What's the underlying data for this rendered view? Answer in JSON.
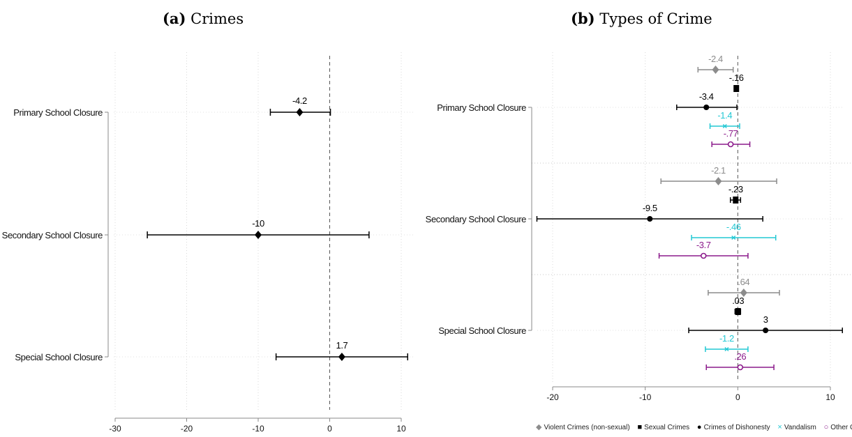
{
  "chart_data": [
    {
      "type": "coefficient-plot",
      "panel_label": "(a)",
      "title": "Crimes",
      "categories": [
        "Primary School Closure",
        "Secondary School Closure",
        "Special School Closure"
      ],
      "series": [
        {
          "marker": "diamond",
          "color": "#000000",
          "estimates": [
            -4.2,
            -10,
            1.7
          ],
          "ci_low": [
            -8.3,
            -25.5,
            -7.5
          ],
          "ci_high": [
            0.1,
            5.5,
            10.9
          ],
          "labels": [
            "-4.2",
            "-10",
            "1.7"
          ]
        }
      ],
      "x_ticks": [
        "-30",
        "-20",
        "-10",
        "0",
        "10"
      ],
      "xlim": [
        -31,
        12
      ],
      "reference_line": 0,
      "grid": true
    },
    {
      "type": "coefficient-plot",
      "panel_label": "(b)",
      "title": "Types of Crime",
      "categories": [
        "Primary School Closure",
        "Secondary School Closure",
        "Special School Closure"
      ],
      "series": [
        {
          "name": "Violent Crimes (non-sexual)",
          "marker": "diamond",
          "color": "#8c8c8c",
          "estimates": [
            -2.4,
            -2.1,
            0.64
          ],
          "ci_low": [
            -4.3,
            -8.3,
            -3.2
          ],
          "ci_high": [
            -0.5,
            4.2,
            4.5
          ],
          "labels": [
            "-2.4",
            "-2.1",
            ".64"
          ]
        },
        {
          "name": "Sexual Crimes",
          "marker": "square",
          "color": "#000000",
          "estimates": [
            -0.16,
            -0.23,
            0.03
          ],
          "ci_low": [
            -0.3,
            -0.8,
            -0.3
          ],
          "ci_high": [
            0.0,
            0.3,
            0.3
          ],
          "labels": [
            "-.16",
            "-.23",
            ".03"
          ]
        },
        {
          "name": "Crimes of Dishonesty",
          "marker": "circle",
          "color": "#000000",
          "estimates": [
            -3.4,
            -9.5,
            3
          ],
          "ci_low": [
            -6.6,
            -21.7,
            -5.3
          ],
          "ci_high": [
            -0.1,
            2.7,
            11.3
          ],
          "labels": [
            "-3.4",
            "-9.5",
            "3"
          ]
        },
        {
          "name": "Vandalism",
          "marker": "x",
          "color": "#22c8d4",
          "estimates": [
            -1.4,
            -0.46,
            -1.2
          ],
          "ci_low": [
            -3.0,
            -5.0,
            -3.5
          ],
          "ci_high": [
            0.2,
            4.1,
            1.1
          ],
          "labels": [
            "-1.4",
            "-.46",
            "-1.2"
          ]
        },
        {
          "name": "Other Crimes",
          "marker": "hollow-circle",
          "color": "#8b1a8b",
          "estimates": [
            -0.77,
            -3.7,
            0.26
          ],
          "ci_low": [
            -2.8,
            -8.5,
            -3.4
          ],
          "ci_high": [
            1.3,
            1.1,
            3.9
          ],
          "labels": [
            "-.77",
            "-3.7",
            ".26"
          ]
        }
      ],
      "x_ticks": [
        "-20",
        "-10",
        "0",
        "10"
      ],
      "xlim": [
        -22,
        12
      ],
      "reference_line": 0,
      "grid": true,
      "legend": "bottom"
    }
  ]
}
